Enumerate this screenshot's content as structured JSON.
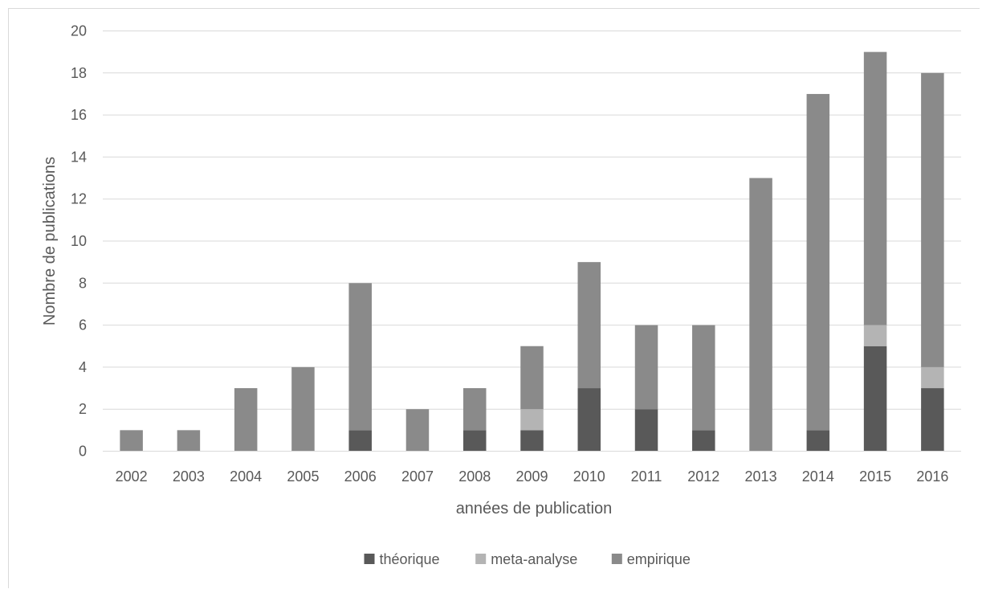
{
  "chart_data": {
    "type": "bar",
    "stacked": true,
    "categories": [
      "2002",
      "2003",
      "2004",
      "2005",
      "2006",
      "2007",
      "2008",
      "2009",
      "2010",
      "2011",
      "2012",
      "2013",
      "2014",
      "2015",
      "2016"
    ],
    "series": [
      {
        "name": "théorique",
        "color": "#595959",
        "values": [
          0,
          0,
          0,
          0,
          1,
          0,
          1,
          1,
          3,
          2,
          1,
          0,
          1,
          5,
          3
        ]
      },
      {
        "name": "meta-analyse",
        "color": "#b4b4b4",
        "values": [
          0,
          0,
          0,
          0,
          0,
          0,
          0,
          1,
          0,
          0,
          0,
          0,
          0,
          1,
          1
        ]
      },
      {
        "name": "empirique",
        "color": "#8a8a8a",
        "values": [
          1,
          1,
          3,
          4,
          7,
          2,
          2,
          3,
          6,
          4,
          5,
          13,
          16,
          13,
          14
        ]
      }
    ],
    "xlabel": "années de publication",
    "ylabel": "Nombre de publications",
    "ylim": [
      0,
      20
    ],
    "yticks": [
      "0",
      "2",
      "4",
      "6",
      "8",
      "10",
      "12",
      "14",
      "16",
      "18",
      "20"
    ],
    "grid": true,
    "legend_position": "bottom"
  }
}
